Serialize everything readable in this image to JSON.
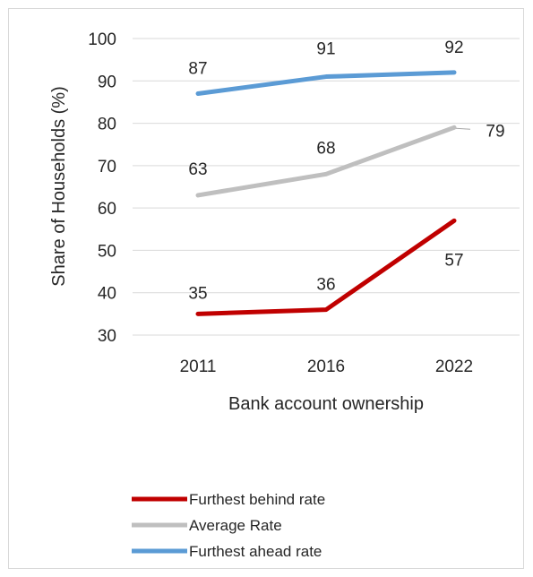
{
  "chart_data": {
    "type": "line",
    "categories": [
      "2011",
      "2016",
      "2022"
    ],
    "series": [
      {
        "name": "Furthest behind rate",
        "values": [
          35,
          36,
          57
        ],
        "color": "#c00000"
      },
      {
        "name": "Average Rate",
        "values": [
          63,
          68,
          79
        ],
        "color": "#bfbfbf"
      },
      {
        "name": "Furthest ahead rate",
        "values": [
          87,
          91,
          92
        ],
        "color": "#5b9bd5"
      }
    ],
    "title": "",
    "xlabel": "Bank account ownership",
    "ylabel": "Share of Households  (%)",
    "ylim": [
      30,
      100
    ],
    "yticks": [
      "30",
      "40",
      "50",
      "60",
      "70",
      "80",
      "90",
      "100"
    ],
    "grid": true,
    "legend_position": "bottom"
  }
}
